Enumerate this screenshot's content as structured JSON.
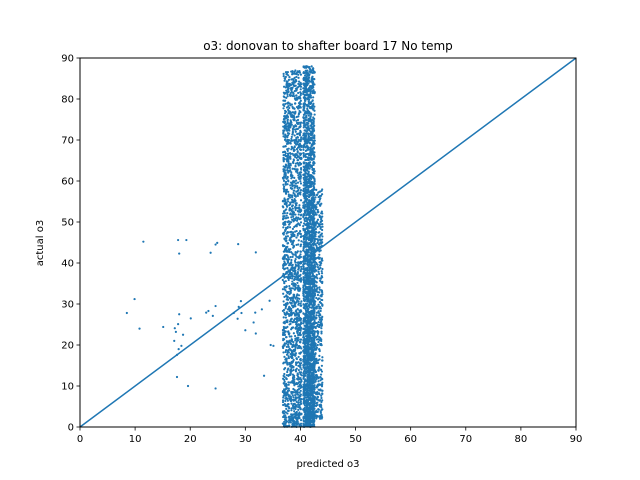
{
  "chart_data": {
    "type": "scatter",
    "title": "o3: donovan to shafter board 17 No temp",
    "xlabel": "predicted o3",
    "ylabel": "actual o3",
    "xlim": [
      0,
      90
    ],
    "ylim": [
      0,
      90
    ],
    "xticks": [
      0,
      10,
      20,
      30,
      40,
      50,
      60,
      70,
      80,
      90
    ],
    "yticks": [
      0,
      10,
      20,
      30,
      40,
      50,
      60,
      70,
      80,
      90
    ],
    "grid": false,
    "legend": "none",
    "color": "#1f77b4",
    "reference_line": {
      "x": [
        0,
        90
      ],
      "y": [
        0,
        90
      ]
    },
    "series": [
      {
        "points": [
          [
            11.5,
            45.2
          ],
          [
            17.8,
            45.6
          ],
          [
            19.3,
            45.6
          ],
          [
            18.0,
            42.3
          ],
          [
            24.6,
            44.5
          ],
          [
            24.9,
            44.9
          ],
          [
            23.7,
            42.5
          ],
          [
            28.7,
            44.6
          ],
          [
            31.9,
            42.6
          ],
          [
            8.5,
            27.8
          ],
          [
            9.9,
            31.2
          ],
          [
            10.8,
            24.0
          ],
          [
            15.1,
            24.4
          ],
          [
            17.2,
            24.1
          ],
          [
            17.8,
            25.1
          ],
          [
            18.0,
            27.5
          ],
          [
            17.4,
            23.2
          ],
          [
            17.1,
            21.0
          ],
          [
            17.6,
            17.6
          ],
          [
            17.9,
            19.0
          ],
          [
            18.4,
            19.8
          ],
          [
            17.6,
            12.2
          ],
          [
            19.6,
            10.0
          ],
          [
            18.7,
            22.5
          ],
          [
            22.9,
            27.9
          ],
          [
            23.3,
            28.3
          ],
          [
            24.6,
            29.5
          ],
          [
            24.1,
            27.1
          ],
          [
            20.1,
            26.5
          ],
          [
            27.9,
            27.8
          ],
          [
            28.6,
            26.4
          ],
          [
            29.2,
            30.7
          ],
          [
            28.8,
            29.3
          ],
          [
            29.3,
            27.8
          ],
          [
            30.0,
            23.6
          ],
          [
            31.9,
            22.8
          ],
          [
            33.0,
            28.7
          ],
          [
            34.4,
            30.8
          ],
          [
            31.5,
            25.5
          ],
          [
            31.8,
            27.9
          ],
          [
            33.4,
            12.5
          ],
          [
            34.6,
            20.0
          ],
          [
            35.1,
            19.8
          ],
          [
            24.6,
            9.4
          ]
        ]
      }
    ]
  }
}
